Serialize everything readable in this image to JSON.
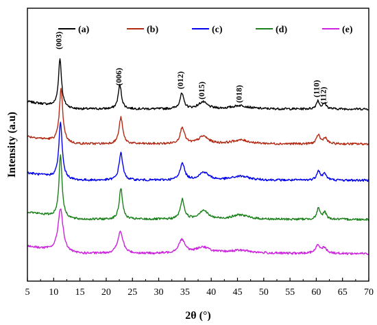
{
  "chart_data": {
    "type": "line",
    "xlabel": "2θ (°)",
    "ylabel": "Intensity (a.u)",
    "xlim": [
      5,
      70
    ],
    "x_ticks": [
      5,
      10,
      15,
      20,
      25,
      30,
      35,
      40,
      45,
      50,
      55,
      60,
      65,
      70
    ],
    "y_ticks_shown": false,
    "grid": false,
    "legend_position": "top",
    "peaks": [
      {
        "label": "(003)",
        "x": 11.2
      },
      {
        "label": "(006)",
        "x": 22.6
      },
      {
        "label": "(012)",
        "x": 34.4
      },
      {
        "label": "(015)",
        "x": 38.4
      },
      {
        "label": "(018)",
        "x": 45.5
      },
      {
        "label": "(110)",
        "x": 60.3
      },
      {
        "label": "(112)",
        "x": 61.6
      }
    ],
    "series": [
      {
        "name": "(a)",
        "color": "#000000",
        "peak_x": [
          11.2,
          22.6,
          34.4,
          38.4,
          45.5,
          60.3,
          61.6
        ]
      },
      {
        "name": "(b)",
        "color": "#b22a14",
        "peak_x": [
          11.4,
          22.8,
          34.5,
          38.5,
          45.6,
          60.4,
          61.7
        ]
      },
      {
        "name": "(c)",
        "color": "#0000ee",
        "peak_x": [
          11.3,
          22.8,
          34.5,
          38.6,
          45.6,
          60.4,
          61.6
        ]
      },
      {
        "name": "(d)",
        "color": "#1a801a",
        "peak_x": [
          11.3,
          22.8,
          34.5,
          38.5,
          45.5,
          60.4,
          61.6
        ]
      },
      {
        "name": "(e)",
        "color": "#cc22dd",
        "peak_x": [
          11.3,
          22.7,
          34.4,
          38.4,
          45.5,
          60.3,
          61.5
        ]
      }
    ]
  }
}
